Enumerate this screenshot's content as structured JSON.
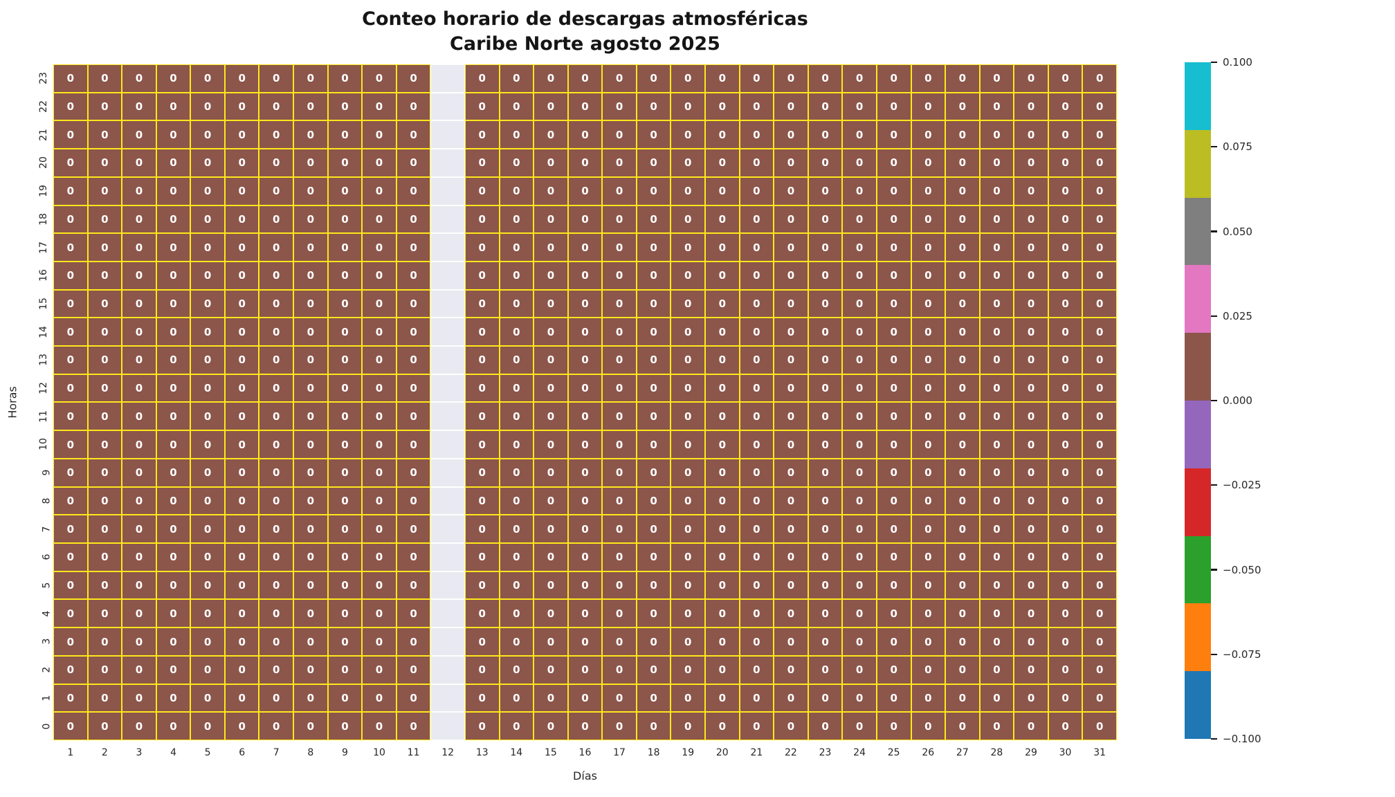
{
  "title": {
    "line1": "Conteo horario de descargas atmosféricas",
    "line2": "Caribe Norte agosto 2025"
  },
  "chart_data": {
    "type": "heatmap",
    "title": "Conteo horario de descargas atmosféricas\nCaribe Norte agosto 2025",
    "xlabel": "Días",
    "ylabel": "Horas",
    "x_categories": [
      1,
      2,
      3,
      4,
      5,
      6,
      7,
      8,
      9,
      10,
      11,
      12,
      13,
      14,
      15,
      16,
      17,
      18,
      19,
      20,
      21,
      22,
      23,
      24,
      25,
      26,
      27,
      28,
      29,
      30,
      31
    ],
    "y_categories": [
      23,
      22,
      21,
      20,
      19,
      18,
      17,
      16,
      15,
      14,
      13,
      12,
      11,
      10,
      9,
      8,
      7,
      6,
      5,
      4,
      3,
      2,
      1,
      0
    ],
    "missing_column_day": 12,
    "values": [
      [
        0,
        0,
        0,
        0,
        0,
        0,
        0,
        0,
        0,
        0,
        0,
        null,
        0,
        0,
        0,
        0,
        0,
        0,
        0,
        0,
        0,
        0,
        0,
        0,
        0,
        0,
        0,
        0,
        0,
        0,
        0
      ],
      [
        0,
        0,
        0,
        0,
        0,
        0,
        0,
        0,
        0,
        0,
        0,
        null,
        0,
        0,
        0,
        0,
        0,
        0,
        0,
        0,
        0,
        0,
        0,
        0,
        0,
        0,
        0,
        0,
        0,
        0,
        0
      ],
      [
        0,
        0,
        0,
        0,
        0,
        0,
        0,
        0,
        0,
        0,
        0,
        null,
        0,
        0,
        0,
        0,
        0,
        0,
        0,
        0,
        0,
        0,
        0,
        0,
        0,
        0,
        0,
        0,
        0,
        0,
        0
      ],
      [
        0,
        0,
        0,
        0,
        0,
        0,
        0,
        0,
        0,
        0,
        0,
        null,
        0,
        0,
        0,
        0,
        0,
        0,
        0,
        0,
        0,
        0,
        0,
        0,
        0,
        0,
        0,
        0,
        0,
        0,
        0
      ],
      [
        0,
        0,
        0,
        0,
        0,
        0,
        0,
        0,
        0,
        0,
        0,
        null,
        0,
        0,
        0,
        0,
        0,
        0,
        0,
        0,
        0,
        0,
        0,
        0,
        0,
        0,
        0,
        0,
        0,
        0,
        0
      ],
      [
        0,
        0,
        0,
        0,
        0,
        0,
        0,
        0,
        0,
        0,
        0,
        null,
        0,
        0,
        0,
        0,
        0,
        0,
        0,
        0,
        0,
        0,
        0,
        0,
        0,
        0,
        0,
        0,
        0,
        0,
        0
      ],
      [
        0,
        0,
        0,
        0,
        0,
        0,
        0,
        0,
        0,
        0,
        0,
        null,
        0,
        0,
        0,
        0,
        0,
        0,
        0,
        0,
        0,
        0,
        0,
        0,
        0,
        0,
        0,
        0,
        0,
        0,
        0
      ],
      [
        0,
        0,
        0,
        0,
        0,
        0,
        0,
        0,
        0,
        0,
        0,
        null,
        0,
        0,
        0,
        0,
        0,
        0,
        0,
        0,
        0,
        0,
        0,
        0,
        0,
        0,
        0,
        0,
        0,
        0,
        0
      ],
      [
        0,
        0,
        0,
        0,
        0,
        0,
        0,
        0,
        0,
        0,
        0,
        null,
        0,
        0,
        0,
        0,
        0,
        0,
        0,
        0,
        0,
        0,
        0,
        0,
        0,
        0,
        0,
        0,
        0,
        0,
        0
      ],
      [
        0,
        0,
        0,
        0,
        0,
        0,
        0,
        0,
        0,
        0,
        0,
        null,
        0,
        0,
        0,
        0,
        0,
        0,
        0,
        0,
        0,
        0,
        0,
        0,
        0,
        0,
        0,
        0,
        0,
        0,
        0
      ],
      [
        0,
        0,
        0,
        0,
        0,
        0,
        0,
        0,
        0,
        0,
        0,
        null,
        0,
        0,
        0,
        0,
        0,
        0,
        0,
        0,
        0,
        0,
        0,
        0,
        0,
        0,
        0,
        0,
        0,
        0,
        0
      ],
      [
        0,
        0,
        0,
        0,
        0,
        0,
        0,
        0,
        0,
        0,
        0,
        null,
        0,
        0,
        0,
        0,
        0,
        0,
        0,
        0,
        0,
        0,
        0,
        0,
        0,
        0,
        0,
        0,
        0,
        0,
        0
      ],
      [
        0,
        0,
        0,
        0,
        0,
        0,
        0,
        0,
        0,
        0,
        0,
        null,
        0,
        0,
        0,
        0,
        0,
        0,
        0,
        0,
        0,
        0,
        0,
        0,
        0,
        0,
        0,
        0,
        0,
        0,
        0
      ],
      [
        0,
        0,
        0,
        0,
        0,
        0,
        0,
        0,
        0,
        0,
        0,
        null,
        0,
        0,
        0,
        0,
        0,
        0,
        0,
        0,
        0,
        0,
        0,
        0,
        0,
        0,
        0,
        0,
        0,
        0,
        0
      ],
      [
        0,
        0,
        0,
        0,
        0,
        0,
        0,
        0,
        0,
        0,
        0,
        null,
        0,
        0,
        0,
        0,
        0,
        0,
        0,
        0,
        0,
        0,
        0,
        0,
        0,
        0,
        0,
        0,
        0,
        0,
        0
      ],
      [
        0,
        0,
        0,
        0,
        0,
        0,
        0,
        0,
        0,
        0,
        0,
        null,
        0,
        0,
        0,
        0,
        0,
        0,
        0,
        0,
        0,
        0,
        0,
        0,
        0,
        0,
        0,
        0,
        0,
        0,
        0
      ],
      [
        0,
        0,
        0,
        0,
        0,
        0,
        0,
        0,
        0,
        0,
        0,
        null,
        0,
        0,
        0,
        0,
        0,
        0,
        0,
        0,
        0,
        0,
        0,
        0,
        0,
        0,
        0,
        0,
        0,
        0,
        0
      ],
      [
        0,
        0,
        0,
        0,
        0,
        0,
        0,
        0,
        0,
        0,
        0,
        null,
        0,
        0,
        0,
        0,
        0,
        0,
        0,
        0,
        0,
        0,
        0,
        0,
        0,
        0,
        0,
        0,
        0,
        0,
        0
      ],
      [
        0,
        0,
        0,
        0,
        0,
        0,
        0,
        0,
        0,
        0,
        0,
        null,
        0,
        0,
        0,
        0,
        0,
        0,
        0,
        0,
        0,
        0,
        0,
        0,
        0,
        0,
        0,
        0,
        0,
        0,
        0
      ],
      [
        0,
        0,
        0,
        0,
        0,
        0,
        0,
        0,
        0,
        0,
        0,
        null,
        0,
        0,
        0,
        0,
        0,
        0,
        0,
        0,
        0,
        0,
        0,
        0,
        0,
        0,
        0,
        0,
        0,
        0,
        0
      ],
      [
        0,
        0,
        0,
        0,
        0,
        0,
        0,
        0,
        0,
        0,
        0,
        null,
        0,
        0,
        0,
        0,
        0,
        0,
        0,
        0,
        0,
        0,
        0,
        0,
        0,
        0,
        0,
        0,
        0,
        0,
        0
      ],
      [
        0,
        0,
        0,
        0,
        0,
        0,
        0,
        0,
        0,
        0,
        0,
        null,
        0,
        0,
        0,
        0,
        0,
        0,
        0,
        0,
        0,
        0,
        0,
        0,
        0,
        0,
        0,
        0,
        0,
        0,
        0
      ],
      [
        0,
        0,
        0,
        0,
        0,
        0,
        0,
        0,
        0,
        0,
        0,
        null,
        0,
        0,
        0,
        0,
        0,
        0,
        0,
        0,
        0,
        0,
        0,
        0,
        0,
        0,
        0,
        0,
        0,
        0,
        0
      ],
      [
        0,
        0,
        0,
        0,
        0,
        0,
        0,
        0,
        0,
        0,
        0,
        null,
        0,
        0,
        0,
        0,
        0,
        0,
        0,
        0,
        0,
        0,
        0,
        0,
        0,
        0,
        0,
        0,
        0,
        0,
        0
      ]
    ],
    "cell_color": "#8c564b",
    "grid_color": "#ffe81a",
    "nan_cell_color": "#e9e9f1",
    "annotation_color": "#ffffff",
    "colorbar": {
      "vmin": -0.1,
      "vmax": 0.1,
      "colors_top_to_bottom": [
        "#17becf",
        "#bcbd22",
        "#7f7f7f",
        "#e377c2",
        "#8c564b",
        "#9467bd",
        "#d62728",
        "#2ca02c",
        "#ff7f0e",
        "#1f77b4"
      ],
      "tick_labels_top_to_bottom": [
        "0.100",
        "0.075",
        "0.050",
        "0.025",
        "0.000",
        "−0.025",
        "−0.050",
        "−0.075",
        "−0.100"
      ]
    }
  }
}
